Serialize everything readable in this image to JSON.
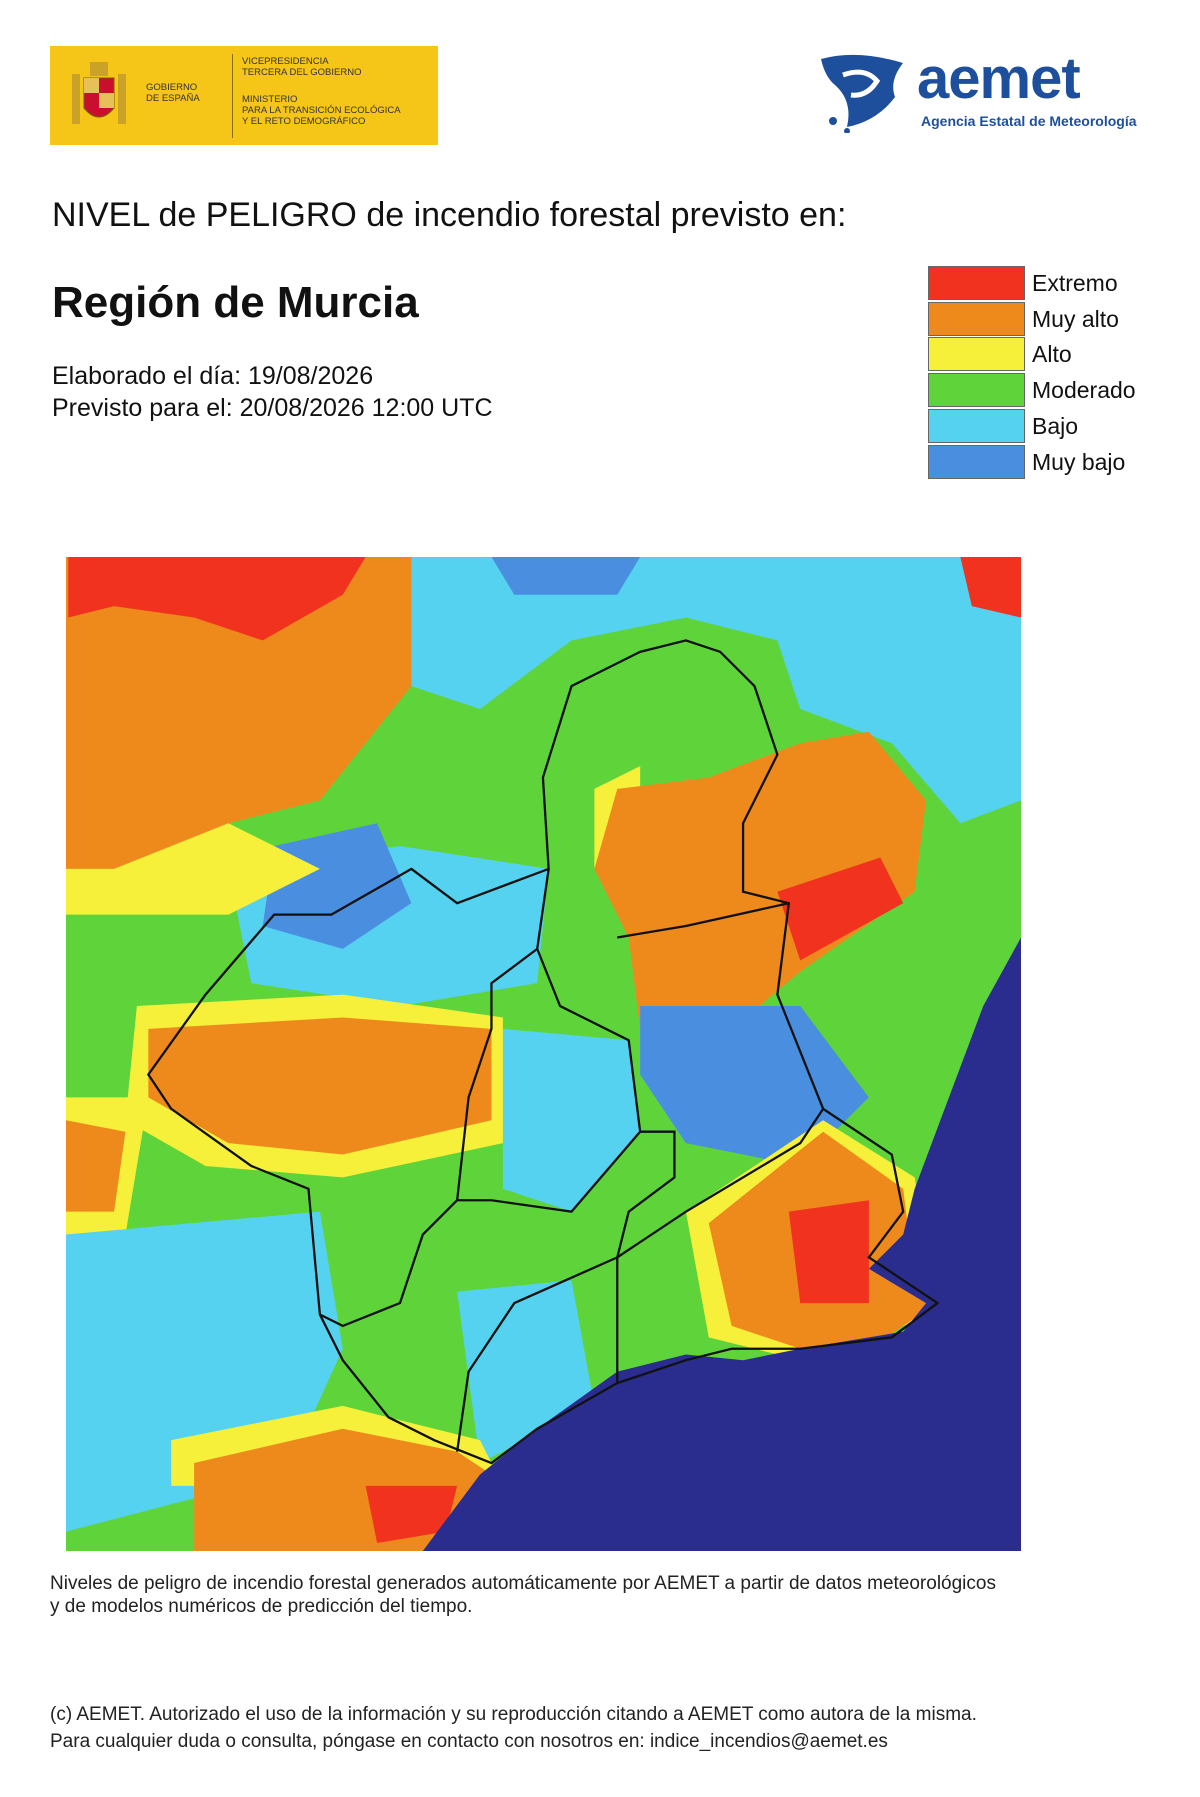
{
  "header": {
    "gov_logo": {
      "name_lines": [
        "GOBIERNO",
        "DE ESPAÑA"
      ],
      "office_lines": [
        "VICEPRESIDENCIA",
        "TERCERA DEL GOBIERNO"
      ],
      "ministry_lines": [
        "MINISTERIO",
        "PARA LA TRANSICIÓN ECOLÓGICA",
        "Y EL RETO DEMOGRÁFICO"
      ]
    },
    "aemet_logo": {
      "name": "aemet",
      "subtitle": "Agencia Estatal de Meteorología"
    },
    "title": "NIVEL de PELIGRO de incendio forestal previsto en:",
    "region": "Región de Murcia",
    "issued": "Elaborado el día: 19/08/2026",
    "valid": "Previsto para el: 20/08/2026 12:00 UTC"
  },
  "legend": {
    "items": [
      {
        "label": "Extremo",
        "color": "#f0321e"
      },
      {
        "label": "Muy alto",
        "color": "#ee8a1c"
      },
      {
        "label": "Alto",
        "color": "#f7f03a"
      },
      {
        "label": "Moderado",
        "color": "#5fd43a"
      },
      {
        "label": "Bajo",
        "color": "#55d2ef"
      },
      {
        "label": "Muy bajo",
        "color": "#4a8ee0"
      }
    ]
  },
  "footer": {
    "note_lines": [
      "Niveles de peligro de incendio forestal generados automáticamente por AEMET a partir de datos meteorológicos",
      "y de modelos numéricos de predicción del tiempo."
    ],
    "copyright_lines": [
      "(c) AEMET. Autorizado el uso de la información y su reproducción citando a AEMET como autora de la misma.",
      "Para cualquier duda o consulta, póngase en contacto con nosotros en: indice_incendios@aemet.es"
    ]
  }
}
